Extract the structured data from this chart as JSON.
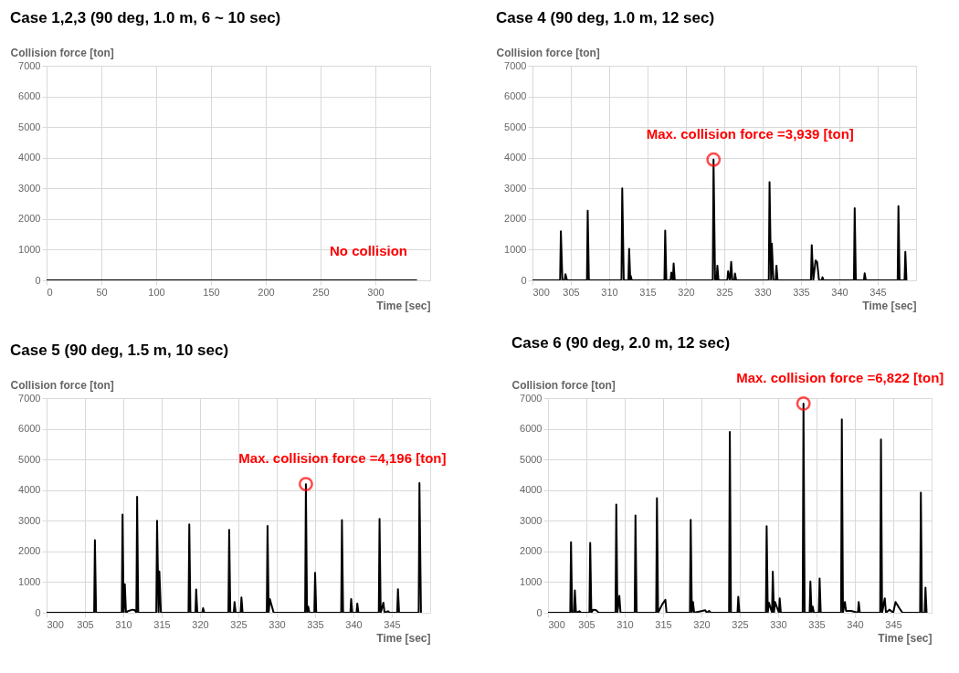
{
  "chart_data": [
    {
      "type": "line",
      "title": "Case 1,2,3 (90 deg, 1.0 m, 6 ~ 10 sec)",
      "xlabel": "Time [sec]",
      "ylabel": "Collision force [ton]",
      "xlim": [
        0,
        350
      ],
      "xticks": [
        0,
        50,
        100,
        150,
        200,
        250,
        300
      ],
      "ylim": [
        0,
        7000
      ],
      "yticks": [
        0,
        1000,
        2000,
        3000,
        4000,
        5000,
        6000,
        7000
      ],
      "grid": true,
      "marker": "none",
      "line_style": "solid",
      "series": [
        {
          "color": "#000000",
          "x": [
            0,
            338
          ],
          "values": [
            0,
            0
          ]
        }
      ],
      "annotations": [
        "No collision"
      ]
    },
    {
      "type": "line",
      "title": "Case 4 (90 deg, 1.0 m, 12 sec)",
      "xlabel": "Time [sec]",
      "ylabel": "Collision force [ton]",
      "xlim": [
        300,
        350
      ],
      "xticks": [
        300,
        305,
        310,
        315,
        320,
        325,
        330,
        335,
        340,
        345
      ],
      "ylim": [
        0,
        7000
      ],
      "yticks": [
        0,
        1000,
        2000,
        3000,
        4000,
        5000,
        6000,
        7000
      ],
      "grid": true,
      "marker": "none",
      "line_style": "solid",
      "series": [
        {
          "color": "#000000",
          "x": [
            300,
            303.6,
            303.7,
            303.9,
            304.2,
            304.3,
            304.5,
            307.1,
            307.2,
            307.35,
            311.6,
            311.7,
            311.9,
            312.5,
            312.6,
            312.75,
            312.8,
            312.95,
            317.2,
            317.3,
            317.45,
            318.0,
            318.1,
            318.3,
            318.4,
            318.55,
            323.5,
            323.6,
            323.8,
            324.0,
            324.1,
            324.25,
            325.4,
            325.5,
            325.75,
            325.9,
            326.05,
            326.3,
            326.4,
            326.55,
            330.8,
            330.9,
            331.1,
            331.2,
            331.4,
            331.7,
            331.8,
            331.95,
            336.3,
            336.4,
            336.6,
            336.9,
            337.1,
            337.35,
            337.7,
            337.8,
            337.95,
            341.9,
            342.0,
            342.15,
            343.2,
            343.3,
            343.45,
            347.6,
            347.7,
            347.85,
            348.5,
            348.6,
            348.75
          ],
          "values": [
            0,
            0,
            1600,
            0,
            0,
            200,
            0,
            0,
            2270,
            0,
            0,
            3000,
            0,
            0,
            1030,
            0,
            150,
            0,
            0,
            1620,
            0,
            0,
            250,
            0,
            550,
            0,
            0,
            3939,
            0,
            0,
            480,
            0,
            0,
            300,
            0,
            600,
            0,
            0,
            220,
            0,
            0,
            3200,
            0,
            1200,
            0,
            0,
            480,
            0,
            0,
            1150,
            0,
            650,
            600,
            0,
            0,
            100,
            0,
            0,
            2350,
            0,
            0,
            230,
            0,
            0,
            2420,
            0,
            0,
            930,
            0
          ]
        }
      ],
      "annotations": [
        {
          "text": "Max. collision force =3,939 [ton]",
          "x": 323.6,
          "y": 3939
        }
      ]
    },
    {
      "type": "line",
      "title": "Case 5 (90 deg, 1.5 m, 10 sec)",
      "xlabel": "Time [sec]",
      "ylabel": "Collision force [ton]",
      "xlim": [
        300,
        350
      ],
      "xticks": [
        300,
        305,
        310,
        315,
        320,
        325,
        330,
        335,
        340,
        345
      ],
      "ylim": [
        0,
        7000
      ],
      "yticks": [
        0,
        1000,
        2000,
        3000,
        4000,
        5000,
        6000,
        7000
      ],
      "grid": true,
      "marker": "none",
      "line_style": "solid",
      "series": [
        {
          "color": "#000000",
          "x": [
            300,
            306.2,
            306.3,
            306.45,
            309.8,
            309.9,
            310.05,
            310.2,
            310.35,
            310.6,
            311.2,
            311.5,
            311.7,
            311.8,
            311.95,
            314.3,
            314.4,
            314.6,
            314.7,
            314.9,
            318.5,
            318.6,
            318.75,
            319.4,
            319.5,
            319.65,
            320.3,
            320.4,
            320.55,
            323.7,
            323.8,
            323.95,
            324.4,
            324.5,
            324.65,
            325.3,
            325.4,
            325.55,
            328.7,
            328.8,
            328.95,
            329.1,
            329.6,
            333.7,
            333.8,
            333.95,
            334.1,
            334.25,
            334.9,
            335.0,
            335.15,
            338.4,
            338.5,
            338.65,
            339.6,
            339.7,
            339.85,
            340.4,
            340.5,
            340.65,
            343.3,
            343.4,
            343.55,
            343.9,
            344.05,
            344.5,
            344.7,
            345.7,
            345.8,
            345.95,
            348.5,
            348.6,
            348.8
          ],
          "values": [
            0,
            0,
            2370,
            0,
            0,
            3200,
            0,
            930,
            0,
            50,
            100,
            80,
            0,
            3780,
            0,
            0,
            3000,
            0,
            1350,
            0,
            0,
            2880,
            0,
            0,
            760,
            0,
            0,
            150,
            0,
            0,
            2700,
            0,
            0,
            350,
            0,
            0,
            500,
            0,
            0,
            2830,
            0,
            450,
            0,
            0,
            4196,
            0,
            200,
            0,
            0,
            1300,
            0,
            0,
            3020,
            0,
            0,
            450,
            0,
            0,
            300,
            0,
            0,
            3060,
            0,
            330,
            0,
            50,
            0,
            0,
            770,
            0,
            0,
            4230,
            0
          ]
        }
      ],
      "annotations": [
        {
          "text": "Max. collision force =4,196 [ton]",
          "x": 333.8,
          "y": 4196
        }
      ]
    },
    {
      "type": "line",
      "title": "Case 6 (90 deg, 2.0 m, 12 sec)",
      "xlabel": "Time [sec]",
      "ylabel": "Collision force [ton]",
      "xlim": [
        300,
        350
      ],
      "xticks": [
        300,
        305,
        310,
        315,
        320,
        325,
        330,
        335,
        340,
        345
      ],
      "ylim": [
        0,
        7000
      ],
      "yticks": [
        0,
        1000,
        2000,
        3000,
        4000,
        5000,
        6000,
        7000
      ],
      "grid": true,
      "marker": "none",
      "line_style": "solid",
      "series": [
        {
          "color": "#000000",
          "x": [
            300,
            302.9,
            303.0,
            303.15,
            303.4,
            303.5,
            303.65,
            304.1,
            304.3,
            305.4,
            305.5,
            305.65,
            305.9,
            306.3,
            306.6,
            308.8,
            308.9,
            309.05,
            309.3,
            309.45,
            311.3,
            311.4,
            311.55,
            314.1,
            314.2,
            314.35,
            314.9,
            315.3,
            315.45,
            318.5,
            318.6,
            318.75,
            318.9,
            319.05,
            320.5,
            320.7,
            321.0,
            321.2,
            323.6,
            323.7,
            323.85,
            324.7,
            324.8,
            324.95,
            328.4,
            328.5,
            328.65,
            328.8,
            329.2,
            329.3,
            329.45,
            329.6,
            330.1,
            330.2,
            330.35,
            333.2,
            333.3,
            333.45,
            334.1,
            334.2,
            334.35,
            334.5,
            334.65,
            335.3,
            335.4,
            335.55,
            338.2,
            338.3,
            338.45,
            338.7,
            338.85,
            339.5,
            340.4,
            340.5,
            340.65,
            343.3,
            343.4,
            343.55,
            343.9,
            344.05,
            344.5,
            345.0,
            345.3,
            345.8,
            346.2,
            348.5,
            348.6,
            348.75,
            349.1,
            349.2,
            349.35
          ],
          "values": [
            0,
            0,
            2300,
            0,
            0,
            730,
            0,
            50,
            0,
            0,
            2280,
            0,
            100,
            80,
            0,
            0,
            3530,
            0,
            550,
            0,
            0,
            3170,
            0,
            0,
            3740,
            0,
            280,
            420,
            0,
            0,
            3030,
            0,
            350,
            0,
            80,
            0,
            60,
            0,
            0,
            5900,
            0,
            0,
            520,
            0,
            0,
            2820,
            0,
            330,
            0,
            1340,
            0,
            350,
            0,
            470,
            0,
            0,
            6822,
            0,
            0,
            1020,
            0,
            200,
            0,
            0,
            1120,
            0,
            0,
            6310,
            0,
            350,
            60,
            60,
            0,
            350,
            0,
            0,
            5650,
            0,
            470,
            0,
            100,
            0,
            350,
            150,
            0,
            0,
            3920,
            0,
            0,
            820,
            0
          ]
        }
      ],
      "annotations": [
        {
          "text": "Max. collision force =6,822 [ton]",
          "x": 333.3,
          "y": 6822
        }
      ]
    }
  ]
}
